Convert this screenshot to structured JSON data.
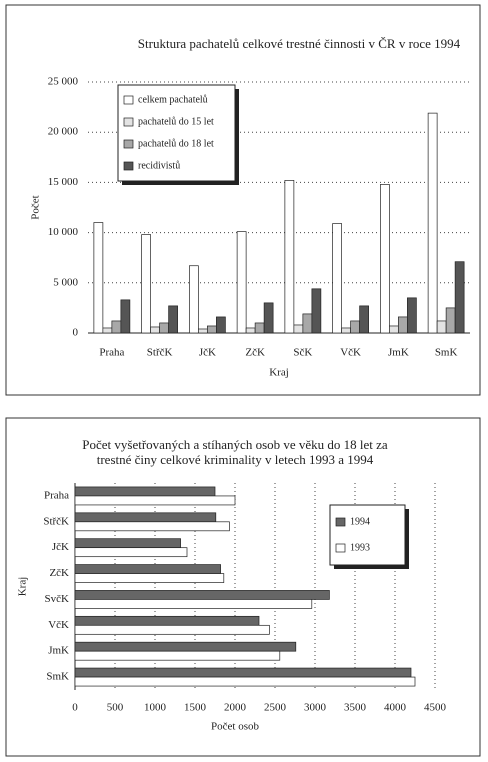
{
  "chart_data": [
    {
      "type": "bar",
      "title": [
        "Struktura pachatelů celkové trestné činnosti v ČR v roce 1994"
      ],
      "x_label": "Kraj",
      "y_label": "Počet",
      "categories": [
        "Praha",
        "StřčK",
        "JčK",
        "ZčK",
        "SčK",
        "VčK",
        "JmK",
        "SmK"
      ],
      "series": [
        {
          "name": "celkem pachatelů",
          "color": "#ffffff",
          "values": [
            11000,
            9800,
            6700,
            10100,
            15200,
            10900,
            14800,
            21900
          ]
        },
        {
          "name": "pachatelů do 15 let",
          "color": "#e3e3e3",
          "values": [
            500,
            600,
            400,
            500,
            800,
            500,
            700,
            1200
          ]
        },
        {
          "name": "pachatelů do 18 let",
          "color": "#a8a8a8",
          "values": [
            1200,
            1000,
            700,
            1000,
            1900,
            1200,
            1600,
            2500
          ]
        },
        {
          "name": "recidivistů",
          "color": "#555555",
          "values": [
            3300,
            2700,
            1600,
            3000,
            4400,
            2700,
            3500,
            7100
          ]
        }
      ],
      "ylim": [
        0,
        25000
      ],
      "yticks": [
        0,
        {
          "value": 5000,
          "label": "5 000"
        },
        {
          "value": 10000,
          "label": "10 000"
        },
        {
          "value": 15000,
          "label": "15 000"
        },
        {
          "value": 20000,
          "label": "20 000"
        },
        {
          "value": 25000,
          "label": "25 000"
        }
      ],
      "grid": true,
      "legend": "upper left"
    },
    {
      "type": "barh",
      "title": [
        "Počet vyšetřovaných a stíhaných osob ve věku do 18 let za",
        "trestné činy celkové kriminality v letech 1993 a 1994"
      ],
      "x_label": "Počet osob",
      "y_label": "Kraj",
      "categories": [
        "Praha",
        "StřčK",
        "JčK",
        "ZčK",
        "SvčK",
        "VčK",
        "JmK",
        "SmK"
      ],
      "series": [
        {
          "name": "1994",
          "color": "#666666",
          "values": [
            1750,
            1760,
            1320,
            1820,
            3180,
            2300,
            2760,
            4200
          ]
        },
        {
          "name": "1993",
          "color": "#ffffff",
          "values": [
            2000,
            1930,
            1400,
            1860,
            2960,
            2430,
            2560,
            4250
          ]
        }
      ],
      "xlim": [
        0,
        4500
      ],
      "xticks": [
        0,
        500,
        1000,
        1500,
        2000,
        2500,
        3000,
        3500,
        4000,
        4500
      ],
      "grid": true,
      "legend": "right"
    }
  ]
}
